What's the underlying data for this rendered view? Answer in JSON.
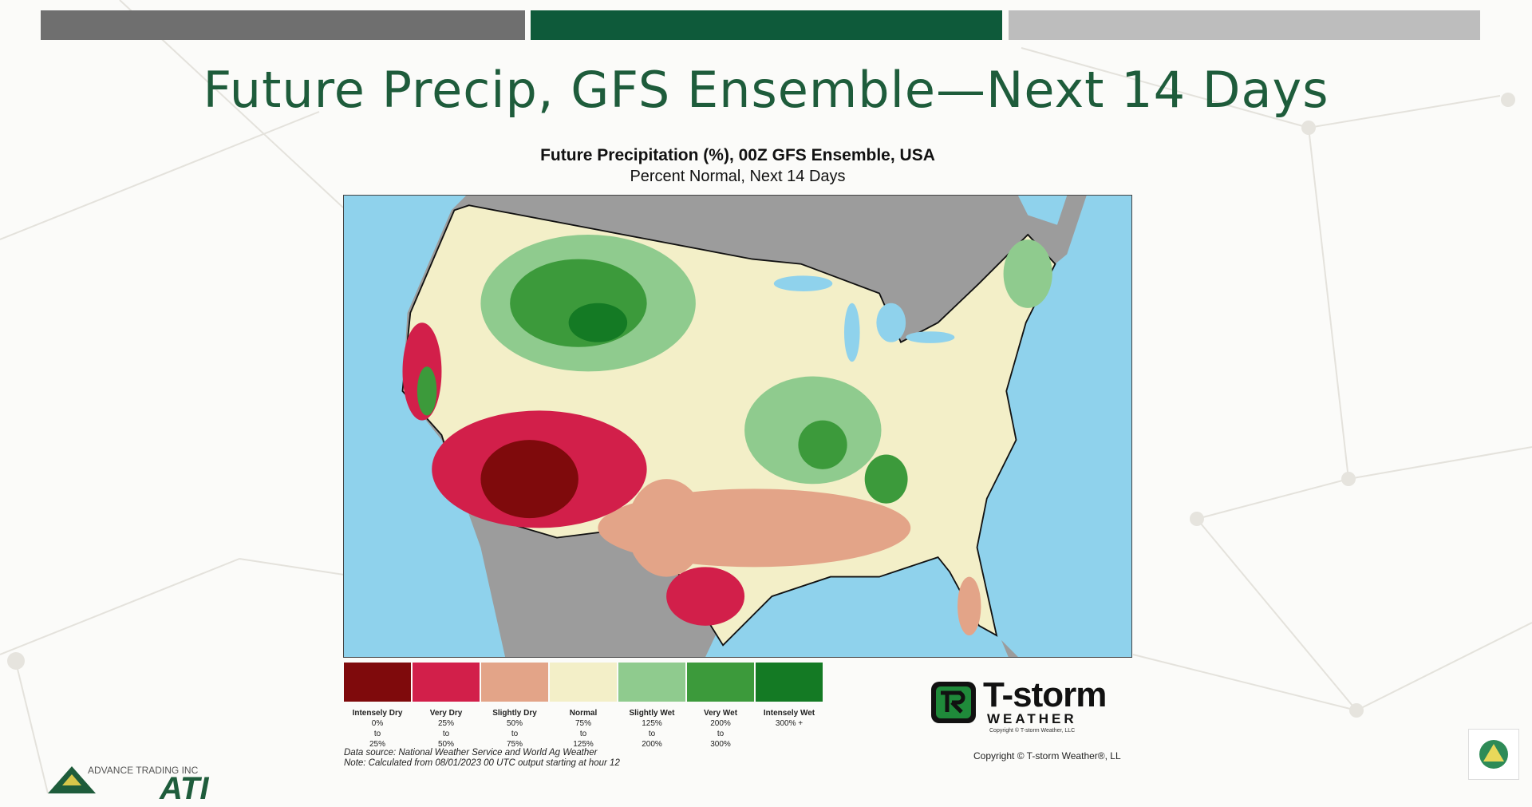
{
  "slide": {
    "title": "Future Precip, GFS Ensemble—Next 14 Days"
  },
  "map": {
    "title": "Future Precipitation (%), 00Z GFS Ensemble, USA",
    "subtitle": "Percent Normal, Next 14 Days",
    "legend": [
      {
        "label": "Intensely Dry",
        "range": [
          "0%",
          "to",
          "25%"
        ]
      },
      {
        "label": "Very Dry",
        "range": [
          "25%",
          "to",
          "50%"
        ]
      },
      {
        "label": "Slightly Dry",
        "range": [
          "50%",
          "to",
          "75%"
        ]
      },
      {
        "label": "Normal",
        "range": [
          "75%",
          "to",
          "125%"
        ]
      },
      {
        "label": "Slightly Wet",
        "range": [
          "125%",
          "to",
          "200%"
        ]
      },
      {
        "label": "Very Wet",
        "range": [
          "200%",
          "to",
          "300%"
        ]
      },
      {
        "label": "Intensely Wet",
        "range": [
          "300% +"
        ]
      }
    ],
    "notes": [
      "Data source: National Weather Service and World Ag Weather",
      "Note: Calculated from 08/01/2023 00 UTC output starting at hour 12"
    ],
    "copyright": "Copyright © T-storm Weather®, LL"
  },
  "logo": {
    "brand": "T-storm",
    "sub": "WEATHER",
    "fine": "Copyright © T-storm Weather, LLC"
  },
  "footer": {
    "company": "ADVANCE TRADING INC",
    "mark": "ATI"
  }
}
